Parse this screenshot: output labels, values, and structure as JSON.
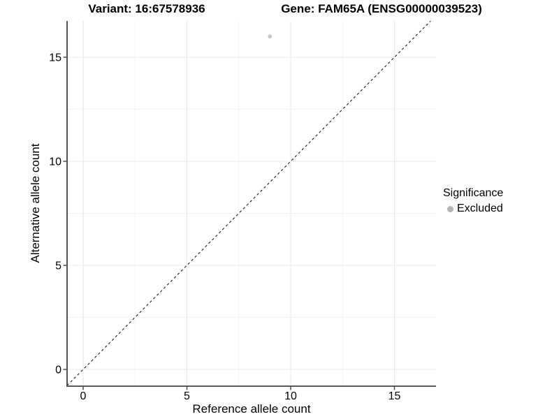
{
  "chart_data": {
    "type": "scatter",
    "title_left": "Variant: 16:67578936",
    "title_right": "Gene: FAM65A (ENSG00000039523)",
    "xlabel": "Reference allele count",
    "ylabel": "Alternative allele count",
    "xlim": [
      -0.8,
      17.0
    ],
    "ylim": [
      -0.9,
      16.7
    ],
    "xticks": [
      0,
      5,
      10,
      15
    ],
    "yticks": [
      0,
      5,
      10,
      15
    ],
    "minor_xticks": [
      2.5,
      7.5,
      12.5
    ],
    "minor_yticks": [
      2.5,
      7.5,
      12.5
    ],
    "grid": "on",
    "points": [
      {
        "x": 9,
        "y": 16,
        "series": "Excluded"
      }
    ],
    "reference_line": {
      "style": "dashed",
      "slope": 1,
      "intercept": 0,
      "color": "#1a1a1a"
    },
    "legend": {
      "title": "Significance",
      "position": "right",
      "items": [
        {
          "label": "Excluded",
          "color": "#b3b3b3"
        }
      ]
    },
    "colors": {
      "point": "#c6c6c6",
      "grid_major": "#e8e8e8",
      "grid_minor": "#f4f4f4",
      "axis": "#404040",
      "tick_text": "#000000",
      "background": "#ffffff"
    }
  }
}
